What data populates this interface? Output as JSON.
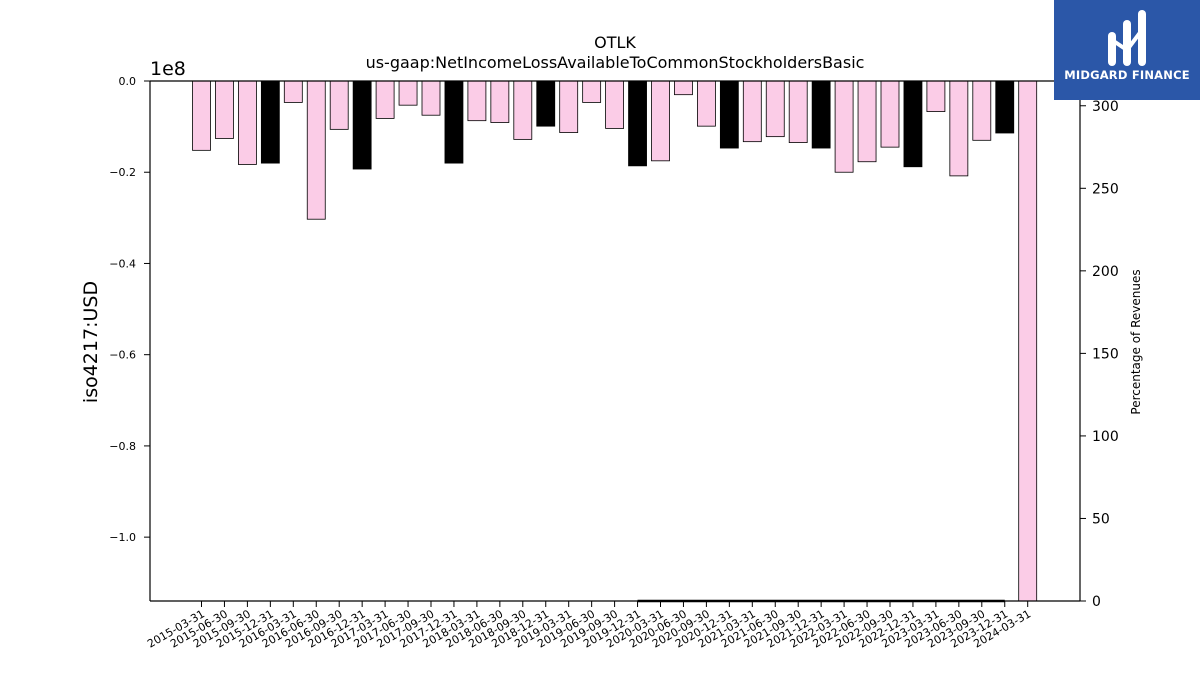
{
  "chart_data": {
    "type": "bar",
    "title": "OTLK",
    "subtitle": "us-gaap:NetIncomeLossAvailableToCommonStockholdersBasic",
    "ylabel": "iso4217:USD",
    "y_offset_label": "1e8",
    "y2label": "Percentage of Revenues",
    "ylim": [
      -114000000,
      0
    ],
    "y2lim": [
      0,
      315
    ],
    "y_ticks": [
      {
        "value": 0,
        "label": "0.0"
      },
      {
        "value": -20000000,
        "label": "−0.2"
      },
      {
        "value": -40000000,
        "label": "−0.4"
      },
      {
        "value": -60000000,
        "label": "−0.6"
      },
      {
        "value": -80000000,
        "label": "−0.8"
      },
      {
        "value": -100000000,
        "label": "−1.0"
      }
    ],
    "y2_ticks": [
      {
        "value": 0,
        "label": "0"
      },
      {
        "value": 50,
        "label": "50"
      },
      {
        "value": 100,
        "label": "100"
      },
      {
        "value": 150,
        "label": "150"
      },
      {
        "value": 200,
        "label": "200"
      },
      {
        "value": 250,
        "label": "250"
      },
      {
        "value": 300,
        "label": "300"
      }
    ],
    "colors": {
      "quarter": "#fbcce7",
      "year_end": "#000000",
      "edge": "#000000"
    },
    "categories": [
      "2015-03-31",
      "2015-06-30",
      "2015-09-30",
      "2015-12-31",
      "2016-03-31",
      "2016-06-30",
      "2016-09-30",
      "2016-12-31",
      "2017-03-31",
      "2017-06-30",
      "2017-09-30",
      "2017-12-31",
      "2018-03-31",
      "2018-06-30",
      "2018-09-30",
      "2018-12-31",
      "2019-03-31",
      "2019-06-30",
      "2019-09-30",
      "2019-12-31",
      "2020-03-31",
      "2020-06-30",
      "2020-09-30",
      "2020-12-31",
      "2021-03-31",
      "2021-06-30",
      "2021-09-30",
      "2021-12-31",
      "2022-03-31",
      "2022-06-30",
      "2022-09-30",
      "2022-12-31",
      "2023-03-31",
      "2023-06-30",
      "2023-09-30",
      "2023-12-31",
      "2024-03-31"
    ],
    "values": [
      -15200000,
      -12600000,
      -18300000,
      -18000000,
      -4700000,
      -30300000,
      -10600000,
      -19300000,
      -8200000,
      -5300000,
      -7500000,
      -18000000,
      -8700000,
      -9100000,
      -12800000,
      -9900000,
      -11300000,
      -4700000,
      -10400000,
      -18600000,
      -17500000,
      -3000000,
      -9900000,
      -14700000,
      -13300000,
      -12200000,
      -13500000,
      -14700000,
      -20000000,
      -17700000,
      -14500000,
      -18800000,
      -6700000,
      -20800000,
      -13000000,
      -11400000,
      -114000000
    ],
    "year_end": [
      false,
      false,
      false,
      true,
      false,
      false,
      false,
      true,
      false,
      false,
      false,
      true,
      false,
      false,
      false,
      true,
      false,
      false,
      false,
      true,
      false,
      false,
      false,
      true,
      false,
      false,
      false,
      true,
      false,
      false,
      false,
      true,
      false,
      false,
      false,
      true,
      false
    ],
    "secondary_series": {
      "x_start": "2019-12-31",
      "x_end": "2023-12-31",
      "values": [
        0,
        0,
        0,
        0,
        0,
        0,
        0,
        0,
        0,
        0,
        0,
        0,
        0,
        0,
        0,
        0,
        0
      ]
    },
    "grid": false,
    "legend": "none"
  },
  "logo": {
    "text": "MIDGARD FINANCE",
    "icon": "midgard-logo-icon"
  }
}
